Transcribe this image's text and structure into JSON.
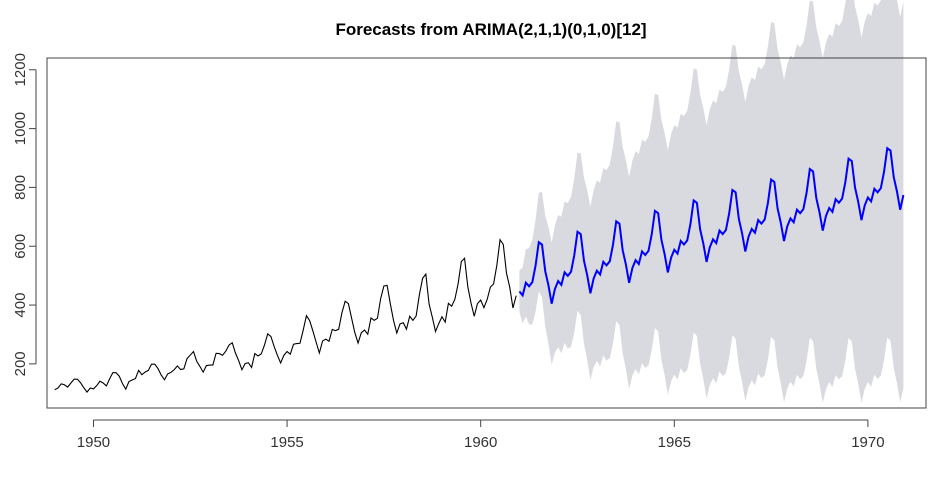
{
  "chart_data": {
    "type": "line",
    "title": "Forecasts from ARIMA(2,1,1)(0,1,0)[12]",
    "xlabel": "",
    "ylabel": "",
    "xlim": [
      1948.8,
      1971.5
    ],
    "ylim": [
      50,
      1240
    ],
    "x_ticks": [
      1950,
      1955,
      1960,
      1965,
      1970
    ],
    "y_ticks": [
      200,
      400,
      600,
      800,
      1000,
      1200
    ],
    "grid": false,
    "frequency": 12,
    "history": {
      "start": 1949,
      "color": "#000000",
      "values": [
        112,
        118,
        132,
        129,
        121,
        135,
        148,
        148,
        136,
        119,
        104,
        118,
        115,
        126,
        141,
        135,
        125,
        149,
        170,
        170,
        158,
        133,
        114,
        140,
        145,
        150,
        178,
        163,
        172,
        178,
        199,
        199,
        184,
        162,
        146,
        166,
        171,
        180,
        193,
        181,
        183,
        218,
        230,
        242,
        209,
        191,
        172,
        194,
        196,
        196,
        236,
        235,
        229,
        243,
        264,
        272,
        237,
        211,
        180,
        201,
        204,
        188,
        235,
        227,
        234,
        264,
        302,
        293,
        259,
        229,
        203,
        229,
        242,
        233,
        267,
        269,
        270,
        315,
        364,
        347,
        312,
        274,
        237,
        278,
        284,
        277,
        317,
        313,
        318,
        374,
        413,
        405,
        355,
        306,
        271,
        306,
        315,
        301,
        356,
        348,
        355,
        422,
        465,
        467,
        404,
        347,
        305,
        336,
        340,
        318,
        362,
        348,
        363,
        435,
        491,
        505,
        404,
        359,
        310,
        337,
        360,
        342,
        406,
        396,
        420,
        472,
        548,
        559,
        463,
        407,
        362,
        405,
        417,
        391,
        419,
        461,
        472,
        535,
        622,
        606,
        508,
        461,
        390,
        432
      ]
    },
    "forecast": {
      "start": 1961,
      "color": "#0000ff",
      "band_color": "#d9d9e0",
      "season_offsets": [
        -6,
        -22,
        18,
        3,
        14,
        67,
        144,
        133,
        40,
        -12,
        -77,
        -30
      ],
      "base_start": 452,
      "base_step": 35.5,
      "band_start": 12,
      "band_step": 9.5
    }
  }
}
